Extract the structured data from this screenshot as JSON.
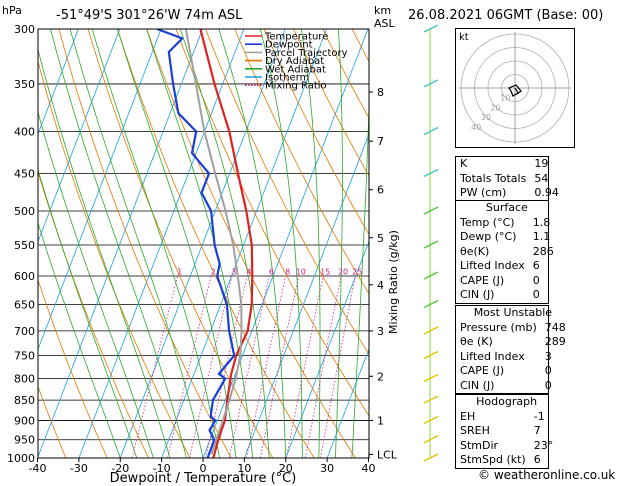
{
  "header": {
    "hpa_label": "hPa",
    "location": "-51°49'S  301°26'W  74m  ASL",
    "km_label": "km",
    "asl_label": "ASL",
    "datetime": "26.08.2021  06GMT  (Base: 00)"
  },
  "chart_data": {
    "type": "line",
    "subtype": "skew-T log-P diagram",
    "xlabel": "Dewpoint / Temperature (°C)",
    "right_axis_label": "Mixing Ratio (g/kg)",
    "xlim": [
      -40,
      40
    ],
    "x_ticks": [
      "-40",
      "-30",
      "-20",
      "-10",
      "0",
      "10",
      "20",
      "30",
      "40"
    ],
    "pressure_levels": [
      300,
      350,
      400,
      450,
      500,
      550,
      600,
      650,
      700,
      750,
      800,
      850,
      900,
      950,
      1000
    ],
    "km_ticks": [
      {
        "label": "8",
        "p": 358
      },
      {
        "label": "7",
        "p": 411
      },
      {
        "label": "6",
        "p": 471
      },
      {
        "label": "5",
        "p": 539
      },
      {
        "label": "4",
        "p": 615
      },
      {
        "label": "3",
        "p": 700
      },
      {
        "label": "2",
        "p": 795
      },
      {
        "label": "1",
        "p": 900
      },
      {
        "label": "LCL",
        "p": 990
      }
    ],
    "mixing_ratio_labels": [
      "1",
      "2",
      "3",
      "4",
      "6",
      "8",
      "10",
      "15",
      "20",
      "25"
    ],
    "legend": {
      "placement": "top-left",
      "entries": [
        {
          "name": "Temperature",
          "color": "#dd2222",
          "dashed": false
        },
        {
          "name": "Dewpoint",
          "color": "#1a3fd8",
          "dashed": false
        },
        {
          "name": "Parcel Trajectory",
          "color": "#a0a0a0",
          "dashed": false
        },
        {
          "name": "Dry Adiabat",
          "color": "#e07800",
          "dashed": false
        },
        {
          "name": "Wet Adiabat",
          "color": "#2aa82a",
          "dashed": false
        },
        {
          "name": "Isotherm",
          "color": "#1aa0e0",
          "dashed": false
        },
        {
          "name": "Mixing Ratio",
          "color": "#cc2288",
          "dashed": true
        }
      ]
    },
    "series": [
      {
        "name": "Temperature",
        "color": "#dd2222",
        "points": [
          [
            300,
            -40.5
          ],
          [
            350,
            -32
          ],
          [
            400,
            -24
          ],
          [
            450,
            -18
          ],
          [
            500,
            -12.5
          ],
          [
            550,
            -8
          ],
          [
            600,
            -5
          ],
          [
            650,
            -2.5
          ],
          [
            700,
            -1
          ],
          [
            750,
            -1.5
          ],
          [
            790,
            -1
          ],
          [
            850,
            0.5
          ],
          [
            900,
            1.8
          ],
          [
            950,
            2
          ],
          [
            1000,
            2.5
          ]
        ]
      },
      {
        "name": "Dewpoint",
        "color": "#1a3fd8",
        "points": [
          [
            300,
            -51
          ],
          [
            308,
            -44
          ],
          [
            320,
            -46
          ],
          [
            350,
            -42
          ],
          [
            380,
            -38
          ],
          [
            400,
            -32
          ],
          [
            425,
            -31
          ],
          [
            450,
            -25
          ],
          [
            475,
            -25
          ],
          [
            500,
            -21
          ],
          [
            550,
            -17
          ],
          [
            580,
            -14
          ],
          [
            600,
            -13.5
          ],
          [
            650,
            -8.5
          ],
          [
            700,
            -5.5
          ],
          [
            750,
            -2
          ],
          [
            790,
            -4
          ],
          [
            800,
            -2
          ],
          [
            850,
            -3
          ],
          [
            890,
            -2
          ],
          [
            900,
            -0.5
          ],
          [
            925,
            -1
          ],
          [
            950,
            1
          ],
          [
            1000,
            1.1
          ]
        ]
      },
      {
        "name": "Parcel Trajectory",
        "color": "#a0a0a0",
        "points": [
          [
            300,
            -44
          ],
          [
            350,
            -36.5
          ],
          [
            400,
            -30
          ],
          [
            450,
            -23.5
          ],
          [
            500,
            -17.5
          ],
          [
            550,
            -12.5
          ],
          [
            600,
            -8.5
          ],
          [
            650,
            -5
          ],
          [
            700,
            -2.5
          ],
          [
            750,
            -0.5
          ],
          [
            800,
            0.5
          ],
          [
            850,
            1
          ],
          [
            900,
            1.3
          ],
          [
            950,
            1.5
          ],
          [
            990,
            1.7
          ]
        ]
      }
    ]
  },
  "hodograph": {
    "title": "kt",
    "ring_labels": [
      "10",
      "20",
      "30",
      "40"
    ]
  },
  "indices": {
    "rows": [
      {
        "label": "K",
        "value": "19"
      },
      {
        "label": "Totals Totals",
        "value": "54"
      },
      {
        "label": "PW (cm)",
        "value": "0.94"
      }
    ],
    "surface": {
      "title": "Surface",
      "rows": [
        {
          "label": "Temp (°C)",
          "value": "1.8"
        },
        {
          "label": "Dewp (°C)",
          "value": "1.1"
        },
        {
          "label": "θe(K)",
          "value": "286"
        },
        {
          "label": "Lifted Index",
          "value": "6"
        },
        {
          "label": "CAPE (J)",
          "value": "0"
        },
        {
          "label": "CIN (J)",
          "value": "0"
        }
      ]
    },
    "most_unstable": {
      "title": "Most Unstable",
      "rows": [
        {
          "label": "Pressure (mb)",
          "value": "748"
        },
        {
          "label": "θe (K)",
          "value": "289"
        },
        {
          "label": "Lifted Index",
          "value": "3"
        },
        {
          "label": "CAPE (J)",
          "value": "0"
        },
        {
          "label": "CIN (J)",
          "value": "0"
        }
      ]
    },
    "hodograph_section": {
      "title": "Hodograph",
      "rows": [
        {
          "label": "EH",
          "value": "-1"
        },
        {
          "label": "SREH",
          "value": "7"
        },
        {
          "label": "StmDir",
          "value": "23°"
        },
        {
          "label": "StmSpd (kt)",
          "value": "6"
        }
      ]
    }
  },
  "credit": "© weatheronline.co.uk"
}
